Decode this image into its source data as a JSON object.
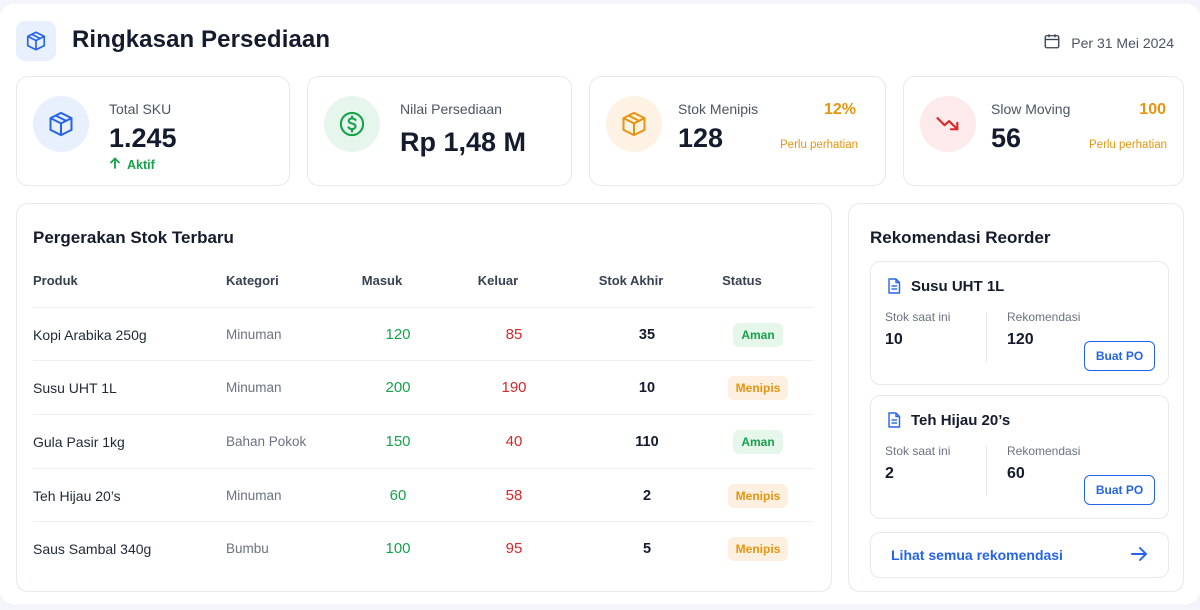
{
  "header": {
    "title": "Ringkasan Persediaan",
    "date": "Per 31 Mei 2024"
  },
  "stats": [
    {
      "label": "Total SKU",
      "value": "1.245",
      "trend": "Aktif",
      "icon": "box-icon",
      "color": "#2563eb"
    },
    {
      "label": "Nilai Persediaan",
      "value": "Rp 1,48 M",
      "icon": "dollar-icon",
      "color": "#16a34a"
    },
    {
      "label": "Stok Menipis",
      "value": "128",
      "badge": "12%",
      "note": "Perlu perhatian",
      "icon": "box-icon",
      "color": "#e8940e"
    },
    {
      "label": "Slow Moving",
      "value": "56",
      "badge": "100",
      "note": "Perlu perhatian",
      "icon": "trend-down-icon",
      "color": "#dc2626"
    }
  ],
  "movements": {
    "title": "Pergerakan Stok Terbaru",
    "columns": [
      "Produk",
      "Kategori",
      "Masuk",
      "Keluar",
      "Stok Akhir",
      "Status"
    ],
    "rows": [
      {
        "product": "Kopi Arabika 250g",
        "category": "Minuman",
        "in": "120",
        "out": "85",
        "end": "35",
        "status": "Aman"
      },
      {
        "product": "Susu UHT 1L",
        "category": "Minuman",
        "in": "200",
        "out": "190",
        "end": "10",
        "status": "Menipis"
      },
      {
        "product": "Gula Pasir 1kg",
        "category": "Bahan Pokok",
        "in": "150",
        "out": "40",
        "end": "110",
        "status": "Aman"
      },
      {
        "product": "Teh Hijau 20’s",
        "category": "Minuman",
        "in": "60",
        "out": "58",
        "end": "2",
        "status": "Menipis"
      },
      {
        "product": "Saus Sambal 340g",
        "category": "Bumbu",
        "in": "100",
        "out": "95",
        "end": "5",
        "status": "Menipis"
      }
    ]
  },
  "reorder": {
    "title": "Rekomendasi Reorder",
    "items": [
      {
        "name": "Susu UHT 1L",
        "current_label": "Stok saat ini",
        "current": "10",
        "rec_label": "Rekomendasi",
        "rec": "120",
        "button": "Buat PO"
      },
      {
        "name": "Teh Hijau 20’s",
        "current_label": "Stok saat ini",
        "current": "2",
        "rec_label": "Rekomendasi",
        "rec": "60",
        "button": "Buat PO"
      }
    ],
    "link": "Lihat semua rekomendasi"
  }
}
